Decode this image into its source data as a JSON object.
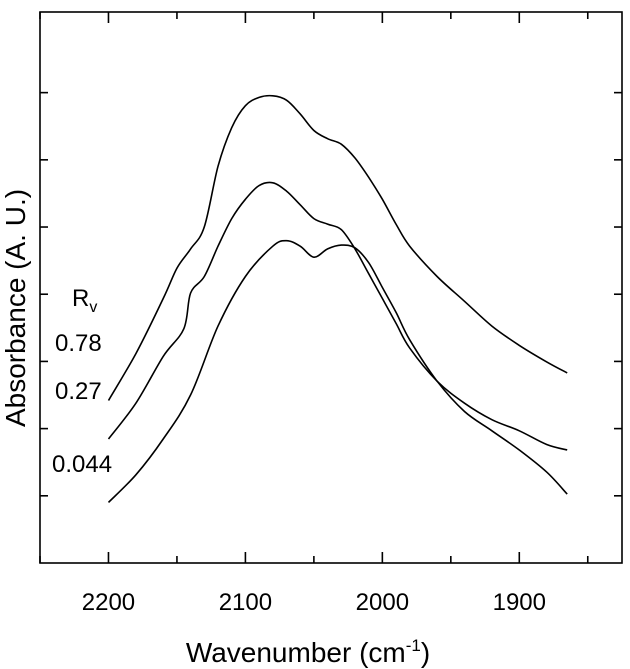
{
  "chart_data": {
    "type": "line",
    "title": "",
    "xlabel": "Wavenumber (cm",
    "xlabel_superscript": "-1",
    "xlabel_suffix": ")",
    "ylabel": "Absorbance (A. U.)",
    "x_reversed": true,
    "xlim": [
      2250,
      1825
    ],
    "x_ticks": [
      2200,
      2100,
      2000,
      1900
    ],
    "grid": false,
    "legend_title": "R",
    "legend_title_subscript": "v",
    "series": [
      {
        "name": "0.78",
        "points": [
          [
            2200,
            0.295
          ],
          [
            2180,
            0.38
          ],
          [
            2160,
            0.48
          ],
          [
            2150,
            0.535
          ],
          [
            2140,
            0.57
          ],
          [
            2130,
            0.61
          ],
          [
            2120,
            0.72
          ],
          [
            2110,
            0.79
          ],
          [
            2100,
            0.83
          ],
          [
            2090,
            0.845
          ],
          [
            2080,
            0.848
          ],
          [
            2070,
            0.84
          ],
          [
            2060,
            0.815
          ],
          [
            2050,
            0.785
          ],
          [
            2040,
            0.77
          ],
          [
            2030,
            0.76
          ],
          [
            2020,
            0.735
          ],
          [
            2010,
            0.7
          ],
          [
            2000,
            0.66
          ],
          [
            1990,
            0.615
          ],
          [
            1980,
            0.575
          ],
          [
            1960,
            0.52
          ],
          [
            1940,
            0.475
          ],
          [
            1920,
            0.43
          ],
          [
            1900,
            0.395
          ],
          [
            1880,
            0.365
          ],
          [
            1865,
            0.345
          ]
        ]
      },
      {
        "name": "0.27",
        "points": [
          [
            2200,
            0.225
          ],
          [
            2180,
            0.29
          ],
          [
            2160,
            0.375
          ],
          [
            2145,
            0.425
          ],
          [
            2140,
            0.49
          ],
          [
            2130,
            0.52
          ],
          [
            2120,
            0.575
          ],
          [
            2110,
            0.625
          ],
          [
            2100,
            0.66
          ],
          [
            2090,
            0.685
          ],
          [
            2080,
            0.69
          ],
          [
            2070,
            0.675
          ],
          [
            2060,
            0.65
          ],
          [
            2050,
            0.625
          ],
          [
            2040,
            0.615
          ],
          [
            2030,
            0.605
          ],
          [
            2020,
            0.57
          ],
          [
            2010,
            0.525
          ],
          [
            2000,
            0.48
          ],
          [
            1990,
            0.435
          ],
          [
            1980,
            0.39
          ],
          [
            1960,
            0.33
          ],
          [
            1940,
            0.29
          ],
          [
            1920,
            0.26
          ],
          [
            1900,
            0.24
          ],
          [
            1880,
            0.215
          ],
          [
            1865,
            0.205
          ]
        ]
      },
      {
        "name": "0.044",
        "points": [
          [
            2200,
            0.11
          ],
          [
            2180,
            0.16
          ],
          [
            2160,
            0.225
          ],
          [
            2140,
            0.305
          ],
          [
            2120,
            0.43
          ],
          [
            2100,
            0.52
          ],
          [
            2080,
            0.575
          ],
          [
            2070,
            0.585
          ],
          [
            2060,
            0.575
          ],
          [
            2050,
            0.555
          ],
          [
            2040,
            0.57
          ],
          [
            2030,
            0.577
          ],
          [
            2020,
            0.572
          ],
          [
            2010,
            0.545
          ],
          [
            2000,
            0.5
          ],
          [
            1990,
            0.455
          ],
          [
            1980,
            0.405
          ],
          [
            1960,
            0.33
          ],
          [
            1940,
            0.275
          ],
          [
            1920,
            0.24
          ],
          [
            1900,
            0.205
          ],
          [
            1880,
            0.165
          ],
          [
            1865,
            0.125
          ]
        ]
      }
    ]
  }
}
